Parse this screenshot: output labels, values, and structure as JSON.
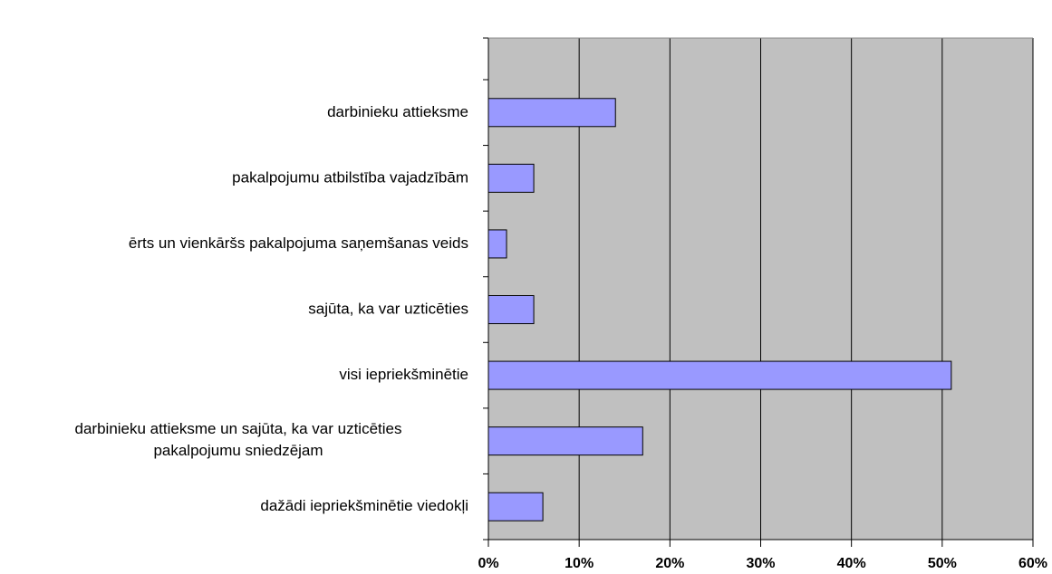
{
  "chart_data": {
    "type": "bar",
    "orientation": "horizontal",
    "categories": [
      "darbinieku attieksme",
      "pakalpojumu atbilstība vajadzībām",
      "ērts un vienkāršs pakalpojuma saņemšanas veids",
      "sajūta, ka var uzticēties",
      "visi iepriekšminētie",
      [
        "darbinieku attieksme un sajūta, ka var uzticēties",
        "pakalpojumu sniedzējam"
      ],
      "dažādi iepriekšminētie viedokļi"
    ],
    "values": [
      14,
      5,
      2,
      5,
      51,
      17,
      6
    ],
    "color": "#9999ff",
    "xlim": [
      0,
      60
    ],
    "xticks": [
      {
        "value": 0,
        "label": "0%"
      },
      {
        "value": 10,
        "label": "10%"
      },
      {
        "value": 20,
        "label": "20%"
      },
      {
        "value": 30,
        "label": "30%"
      },
      {
        "value": 40,
        "label": "40%"
      },
      {
        "value": 50,
        "label": "50%"
      },
      {
        "value": 60,
        "label": "60%"
      }
    ],
    "grid": true
  }
}
